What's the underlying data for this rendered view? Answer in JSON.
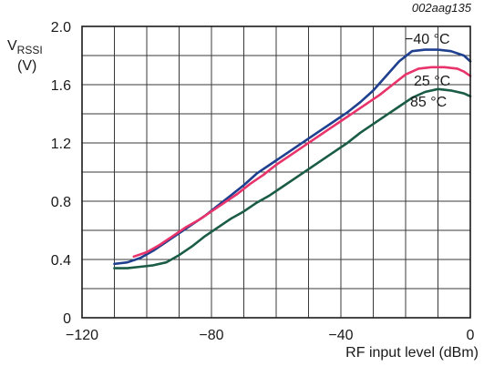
{
  "chart_data": {
    "type": "line",
    "figure_id": "002aag135",
    "ylabel_main": "V",
    "ylabel_sub": "RSSI",
    "ylabel_unit": "(V)",
    "xlabel": "RF input level (dBm)",
    "xlim": [
      -120,
      0
    ],
    "ylim": [
      0,
      2.0
    ],
    "x_major_ticks": [
      -120,
      -80,
      -40,
      0
    ],
    "x_tick_labels": [
      "−120",
      "−80",
      "−40",
      "0"
    ],
    "y_major_ticks": [
      0,
      0.4,
      0.8,
      1.2,
      1.6,
      2.0
    ],
    "y_tick_labels": [
      "0",
      "0.4",
      "0.8",
      "1.2",
      "1.6",
      "2.0"
    ],
    "grid": true,
    "grid_x_step": 10,
    "grid_y_step": 0.2,
    "series": [
      {
        "name": "−40 °C",
        "color": "#1f3f8f",
        "x": [
          -110,
          -106,
          -102,
          -98,
          -94,
          -90,
          -86,
          -82,
          -78,
          -74,
          -70,
          -66,
          -62,
          -58,
          -54,
          -50,
          -46,
          -42,
          -38,
          -34,
          -30,
          -26,
          -22,
          -18,
          -14,
          -10,
          -6,
          -2,
          0
        ],
        "y": [
          0.37,
          0.38,
          0.41,
          0.46,
          0.52,
          0.58,
          0.64,
          0.7,
          0.77,
          0.84,
          0.91,
          0.99,
          1.05,
          1.11,
          1.17,
          1.23,
          1.29,
          1.35,
          1.41,
          1.48,
          1.56,
          1.66,
          1.76,
          1.83,
          1.84,
          1.84,
          1.83,
          1.8,
          1.76
        ]
      },
      {
        "name": "25 °C",
        "color": "#e8336b",
        "x": [
          -104,
          -100,
          -96,
          -92,
          -88,
          -84,
          -80,
          -76,
          -72,
          -68,
          -64,
          -60,
          -56,
          -52,
          -48,
          -44,
          -40,
          -36,
          -32,
          -28,
          -24,
          -20,
          -16,
          -12,
          -8,
          -4,
          -2,
          0
        ],
        "y": [
          0.42,
          0.45,
          0.5,
          0.56,
          0.62,
          0.67,
          0.73,
          0.79,
          0.85,
          0.92,
          0.98,
          1.05,
          1.11,
          1.17,
          1.23,
          1.29,
          1.35,
          1.41,
          1.47,
          1.53,
          1.6,
          1.67,
          1.71,
          1.72,
          1.72,
          1.71,
          1.69,
          1.66
        ]
      },
      {
        "name": "85 °C",
        "color": "#1b5c45",
        "x": [
          -110,
          -106,
          -102,
          -98,
          -94,
          -90,
          -86,
          -82,
          -78,
          -74,
          -70,
          -66,
          -62,
          -58,
          -54,
          -50,
          -46,
          -42,
          -38,
          -34,
          -30,
          -26,
          -22,
          -18,
          -14,
          -10,
          -6,
          -2,
          0
        ],
        "y": [
          0.34,
          0.34,
          0.35,
          0.36,
          0.38,
          0.43,
          0.49,
          0.56,
          0.62,
          0.68,
          0.73,
          0.79,
          0.84,
          0.9,
          0.96,
          1.02,
          1.08,
          1.14,
          1.2,
          1.27,
          1.33,
          1.39,
          1.45,
          1.51,
          1.55,
          1.57,
          1.56,
          1.54,
          1.52
        ]
      }
    ]
  }
}
